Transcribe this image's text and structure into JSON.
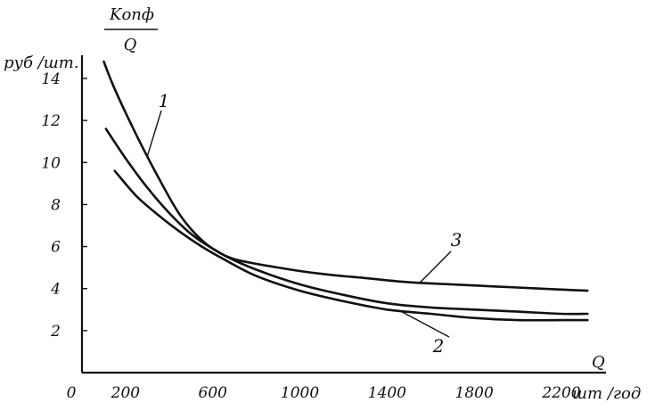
{
  "chart_data": {
    "type": "line",
    "title": "",
    "ylabel_top_line": "Kопф",
    "ylabel_fraction_denominator": "Q",
    "ylabel_units": "руб /шт.",
    "xlabel": "Q",
    "xlabel_units": "шт /год",
    "x_ticks": [
      "0",
      "200",
      "600",
      "1000",
      "1400",
      "1800",
      "2200"
    ],
    "x_tick_values": [
      0,
      200,
      600,
      1000,
      1400,
      1800,
      2200
    ],
    "y_ticks": [
      "2",
      "4",
      "6",
      "8",
      "10",
      "12",
      "14"
    ],
    "y_tick_values": [
      2,
      4,
      6,
      8,
      10,
      12,
      14
    ],
    "xlim": [
      0,
      2350
    ],
    "ylim": [
      0,
      15.5
    ],
    "grid": false,
    "series": [
      {
        "name": "1",
        "points": [
          [
            100,
            14.8
          ],
          [
            150,
            13.5
          ],
          [
            250,
            11.3
          ],
          [
            350,
            9.3
          ],
          [
            450,
            7.5
          ],
          [
            550,
            6.3
          ],
          [
            650,
            5.6
          ],
          [
            800,
            4.9
          ],
          [
            1000,
            4.2
          ],
          [
            1200,
            3.7
          ],
          [
            1400,
            3.3
          ],
          [
            1600,
            3.1
          ],
          [
            1800,
            3.0
          ],
          [
            2000,
            2.9
          ],
          [
            2200,
            2.8
          ],
          [
            2320,
            2.8
          ]
        ]
      },
      {
        "name": "2",
        "points": [
          [
            150,
            9.6
          ],
          [
            250,
            8.4
          ],
          [
            350,
            7.5
          ],
          [
            450,
            6.7
          ],
          [
            550,
            6.0
          ],
          [
            650,
            5.4
          ],
          [
            800,
            4.6
          ],
          [
            1000,
            3.9
          ],
          [
            1200,
            3.4
          ],
          [
            1400,
            3.0
          ],
          [
            1600,
            2.8
          ],
          [
            1800,
            2.6
          ],
          [
            2000,
            2.5
          ],
          [
            2200,
            2.5
          ],
          [
            2320,
            2.5
          ]
        ]
      },
      {
        "name": "3",
        "points": [
          [
            110,
            11.6
          ],
          [
            200,
            10.2
          ],
          [
            300,
            8.8
          ],
          [
            400,
            7.6
          ],
          [
            500,
            6.6
          ],
          [
            600,
            5.9
          ],
          [
            700,
            5.4
          ],
          [
            900,
            5.0
          ],
          [
            1100,
            4.7
          ],
          [
            1300,
            4.5
          ],
          [
            1500,
            4.3
          ],
          [
            1700,
            4.2
          ],
          [
            1900,
            4.1
          ],
          [
            2100,
            4.0
          ],
          [
            2320,
            3.9
          ]
        ]
      }
    ]
  }
}
